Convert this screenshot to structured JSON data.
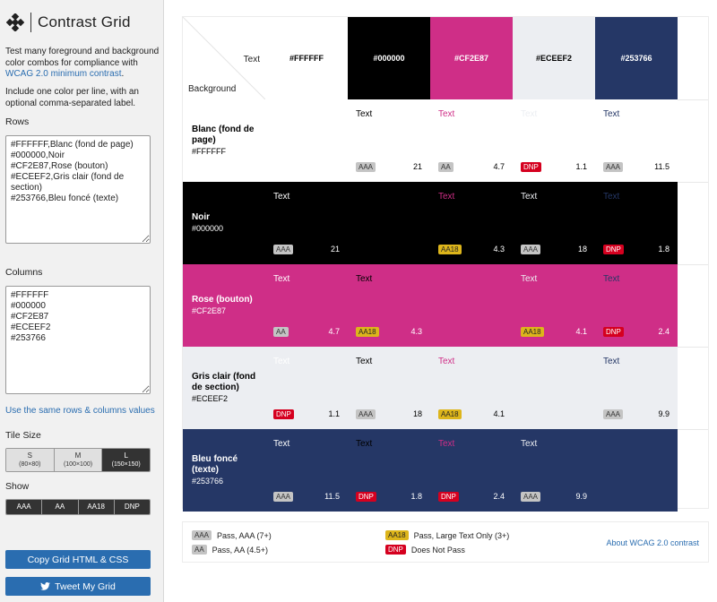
{
  "sidebar": {
    "title": "Contrast Grid",
    "description_1": "Test many foreground and background color combos for compliance with",
    "description_link": "WCAG 2.0 minimum contrast",
    "description_2": "Include one color per line, with an optional comma-separated label.",
    "rows_label": "Rows",
    "rows_value": "#FFFFFF,Blanc (fond de page)\n#000000,Noir\n#CF2E87,Rose (bouton)\n#ECEEF2,Gris clair (fond de section)\n#253766,Bleu foncé (texte)",
    "columns_label": "Columns",
    "columns_value": "#FFFFFF\n#000000\n#CF2E87\n#ECEEF2\n#253766",
    "same_link": "Use the same rows & columns values",
    "tile_size_label": "Tile Size",
    "tile_sizes": [
      {
        "label": "S",
        "sub": "(80×80)"
      },
      {
        "label": "M",
        "sub": "(100×100)"
      },
      {
        "label": "L",
        "sub": "(150×150)"
      }
    ],
    "tile_selected": "L",
    "show_label": "Show",
    "show_options": [
      "AAA",
      "AA",
      "AA18",
      "DNP"
    ],
    "copy_button": "Copy Grid HTML & CSS",
    "tweet_button": "Tweet My Grid",
    "tweet_icon": "twitter-bird-icon"
  },
  "grid": {
    "corner_text": "Text",
    "corner_background": "Background",
    "sample_text": "Text",
    "columns": [
      {
        "hex": "#FFFFFF",
        "color": "#FFFFFF",
        "label_color": "#000000"
      },
      {
        "hex": "#000000",
        "color": "#000000",
        "label_color": "#FFFFFF"
      },
      {
        "hex": "#CF2E87",
        "color": "#CF2E87",
        "label_color": "#FFFFFF"
      },
      {
        "hex": "#ECEEF2",
        "color": "#ECEEF2",
        "label_color": "#000000"
      },
      {
        "hex": "#253766",
        "color": "#253766",
        "label_color": "#FFFFFF"
      }
    ],
    "rows": [
      {
        "name": "Blanc (fond de page)",
        "hex": "#FFFFFF",
        "color": "#FFFFFF",
        "label_color": "#000000",
        "cells": [
          null,
          {
            "badge": "AAA",
            "ratio": "21"
          },
          {
            "badge": "AA",
            "ratio": "4.7"
          },
          {
            "badge": "DNP",
            "ratio": "1.1"
          },
          {
            "badge": "AAA",
            "ratio": "11.5"
          }
        ]
      },
      {
        "name": "Noir",
        "hex": "#000000",
        "color": "#000000",
        "label_color": "#FFFFFF",
        "cells": [
          {
            "badge": "AAA",
            "ratio": "21"
          },
          null,
          {
            "badge": "AA18",
            "ratio": "4.3"
          },
          {
            "badge": "AAA",
            "ratio": "18"
          },
          {
            "badge": "DNP",
            "ratio": "1.8"
          }
        ]
      },
      {
        "name": "Rose (bouton)",
        "hex": "#CF2E87",
        "color": "#CF2E87",
        "label_color": "#FFFFFF",
        "cells": [
          {
            "badge": "AA",
            "ratio": "4.7"
          },
          {
            "badge": "AA18",
            "ratio": "4.3"
          },
          null,
          {
            "badge": "AA18",
            "ratio": "4.1"
          },
          {
            "badge": "DNP",
            "ratio": "2.4"
          }
        ]
      },
      {
        "name": "Gris clair (fond de section)",
        "hex": "#ECEEF2",
        "color": "#ECEEF2",
        "label_color": "#000000",
        "cells": [
          {
            "badge": "DNP",
            "ratio": "1.1"
          },
          {
            "badge": "AAA",
            "ratio": "18"
          },
          {
            "badge": "AA18",
            "ratio": "4.1"
          },
          null,
          {
            "badge": "AAA",
            "ratio": "9.9"
          }
        ]
      },
      {
        "name": "Bleu foncé (texte)",
        "hex": "#253766",
        "color": "#253766",
        "label_color": "#FFFFFF",
        "cells": [
          {
            "badge": "AAA",
            "ratio": "11.5"
          },
          {
            "badge": "DNP",
            "ratio": "1.8"
          },
          {
            "badge": "DNP",
            "ratio": "2.4"
          },
          {
            "badge": "AAA",
            "ratio": "9.9"
          },
          null
        ]
      }
    ]
  },
  "legend": {
    "items": [
      {
        "badge": "AAA",
        "text": "Pass, AAA (7+)"
      },
      {
        "badge": "AA",
        "text": "Pass, AA (4.5+)"
      },
      {
        "badge": "AA18",
        "text": "Pass, Large Text Only (3+)"
      },
      {
        "badge": "DNP",
        "text": "Does Not Pass"
      }
    ],
    "about_link": "About WCAG 2.0 contrast"
  }
}
